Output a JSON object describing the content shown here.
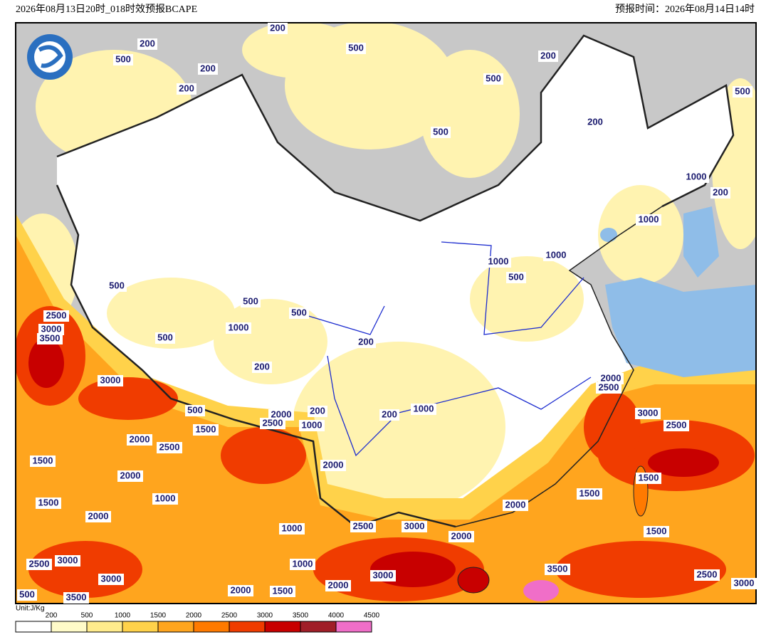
{
  "header": {
    "title": "2026年08月13日20时_018时效预报BCAPE",
    "forecast_time": "预报时间：2026年08月14日14时"
  },
  "legend": {
    "unit": "Unit:J/Kg",
    "ticks": [
      "200",
      "500",
      "1000",
      "1500",
      "2000",
      "2500",
      "3000",
      "3500",
      "4000",
      "4500"
    ],
    "colors": [
      "#ffffff",
      "#fffbc8",
      "#ffeb8c",
      "#ffd24a",
      "#ffa51e",
      "#ff7a00",
      "#f03c00",
      "#c80000",
      "#a01e28",
      "#f06ec8"
    ]
  },
  "contour_labels": [
    "200",
    "200",
    "500",
    "200",
    "200",
    "500",
    "200",
    "500",
    "500",
    "200",
    "500",
    "1000",
    "200",
    "1000",
    "1000",
    "1000",
    "500",
    "500",
    "500",
    "500",
    "2500",
    "3000",
    "3500",
    "1000",
    "500",
    "200",
    "200",
    "3000",
    "2000",
    "2500",
    "500",
    "2000",
    "200",
    "200",
    "1000",
    "2500",
    "1000",
    "3000",
    "2500",
    "1500",
    "2000",
    "2500",
    "1500",
    "2000",
    "2000",
    "1500",
    "1500",
    "1000",
    "1500",
    "2000",
    "2000",
    "1000",
    "2500",
    "3000",
    "2000",
    "1500",
    "3000",
    "2500",
    "1000",
    "3000",
    "3000",
    "3500",
    "2500",
    "3000",
    "2000",
    "1500",
    "2000",
    "500",
    "3500"
  ]
}
